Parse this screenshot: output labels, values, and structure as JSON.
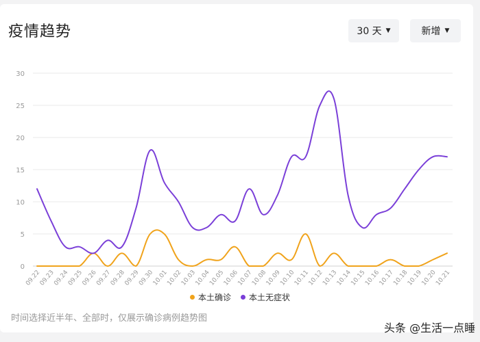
{
  "header": {
    "title": "疫情趋势",
    "range_select": "30 天",
    "type_select": "新增"
  },
  "note": "时间选择近半年、全部时，仅展示确诊病例趋势图",
  "watermark": "头条 @生活一点睡",
  "colors": {
    "local_confirmed": "#f0a31b",
    "local_asymptomatic": "#7a3fd8",
    "grid": "#e8e8e8",
    "axis_label": "#999999"
  },
  "chart_data": {
    "type": "line",
    "x": [
      "09.22",
      "09.23",
      "09.24",
      "09.25",
      "09.26",
      "09.27",
      "09.28",
      "09.29",
      "09.30",
      "10.01",
      "10.02",
      "10.03",
      "10.04",
      "10.05",
      "10.06",
      "10.07",
      "10.08",
      "10.09",
      "10.10",
      "10.11",
      "10.12",
      "10.13",
      "10.14",
      "10.15",
      "10.16",
      "10.17",
      "10.18",
      "10.19",
      "10.20",
      "10.21"
    ],
    "ylim": [
      0,
      30
    ],
    "yticks": [
      0,
      5,
      10,
      15,
      20,
      25,
      30
    ],
    "grid": true,
    "legend_position": "bottom",
    "series": [
      {
        "name": "本土确诊",
        "color": "#f0a31b",
        "values": [
          0,
          0,
          0,
          0,
          2,
          0,
          2,
          0,
          5,
          5,
          1,
          0,
          1,
          1,
          3,
          0,
          0,
          2,
          1,
          5,
          0,
          2,
          0,
          0,
          0,
          1,
          0,
          0,
          1,
          2
        ]
      },
      {
        "name": "本土无症状",
        "color": "#7a3fd8",
        "values": [
          12,
          7,
          3,
          3,
          2,
          4,
          3,
          9,
          18,
          13,
          10,
          6,
          6,
          8,
          7,
          12,
          8,
          11,
          17,
          17,
          25,
          26,
          11,
          6,
          8,
          9,
          12,
          15,
          17,
          17
        ]
      }
    ]
  }
}
